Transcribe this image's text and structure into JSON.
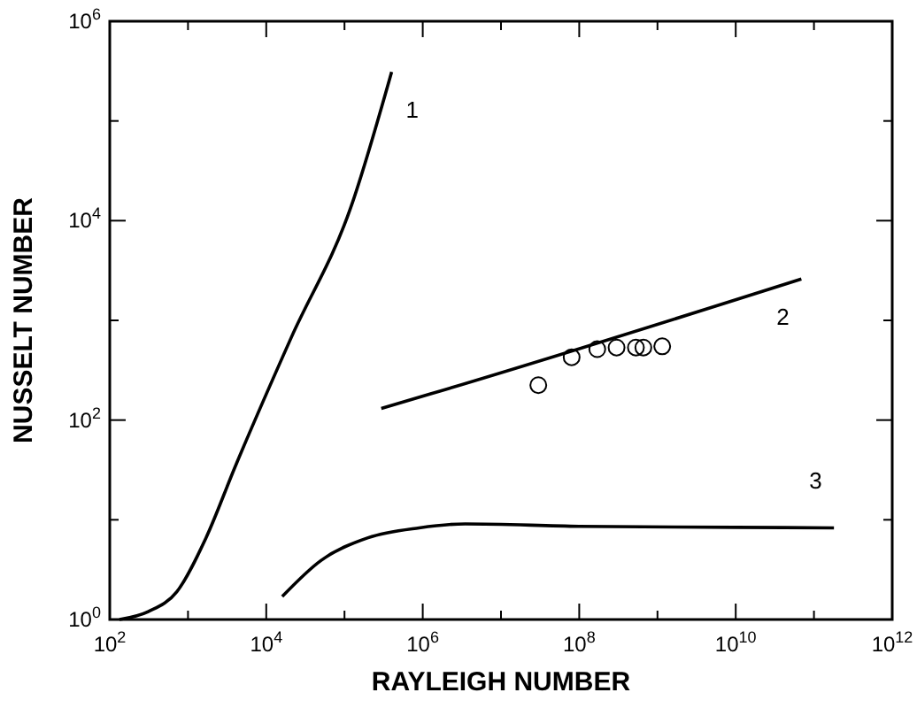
{
  "chart_data": {
    "type": "line",
    "xlabel": "RAYLEIGH NUMBER",
    "ylabel": "NUSSELT NUMBER",
    "log": "xy",
    "xlim": [
      100,
      1000000000000
    ],
    "ylim": [
      1,
      1000000
    ],
    "xticks": [
      {
        "value": 100,
        "label": "10$^{2}$"
      },
      {
        "value": 1000,
        "label": null
      },
      {
        "value": 10000,
        "label": "10$^{4}$"
      },
      {
        "value": 100000,
        "label": null
      },
      {
        "value": 1000000,
        "label": "10$^{6}$"
      },
      {
        "value": 10000000,
        "label": null
      },
      {
        "value": 100000000,
        "label": "10$^{8}$"
      },
      {
        "value": 1000000000,
        "label": null
      },
      {
        "value": 10000000000,
        "label": "10$^{10}$"
      },
      {
        "value": 100000000000,
        "label": null
      },
      {
        "value": 1000000000000,
        "label": "10$^{12}$"
      }
    ],
    "yticks": [
      {
        "value": 1,
        "label": "10$^{0}$"
      },
      {
        "value": 10,
        "label": null
      },
      {
        "value": 100,
        "label": "10$^{2}$"
      },
      {
        "value": 1000,
        "label": null
      },
      {
        "value": 10000,
        "label": "10$^{4}$"
      },
      {
        "value": 100000,
        "label": null
      },
      {
        "value": 1000000,
        "label": "10$^{6}$"
      }
    ],
    "series": [
      {
        "name": "1",
        "color": "#000000",
        "marker": "none",
        "line_style": "solid",
        "x": [
          133,
          310,
          720,
          1700,
          4000,
          21000,
          120000,
          400000
        ],
        "values": [
          1,
          1.2,
          1.9,
          6.6,
          34,
          680,
          13500,
          310000
        ]
      },
      {
        "name": "2",
        "color": "#000000",
        "marker": "none",
        "line_style": "solid",
        "x": [
          295000,
          1260000,
          69000000000
        ],
        "values": [
          131,
          183,
          2600
        ]
      },
      {
        "name": "3",
        "color": "#000000",
        "marker": "none",
        "line_style": "solid",
        "x": [
          16000,
          50000,
          200000,
          900000,
          3500000,
          100000000,
          10000000000,
          180000000000
        ],
        "values": [
          1.7,
          3.9,
          6.6,
          8.3,
          9.1,
          8.6,
          8.4,
          8.3
        ]
      },
      {
        "type": "scatter",
        "color": "#000000",
        "marker": "circle",
        "x": [
          30000000,
          80000000,
          170000000,
          300000000,
          530000000,
          660000000,
          1150000000
        ],
        "values": [
          224,
          427,
          515,
          534,
          534,
          534,
          549
        ]
      }
    ]
  }
}
